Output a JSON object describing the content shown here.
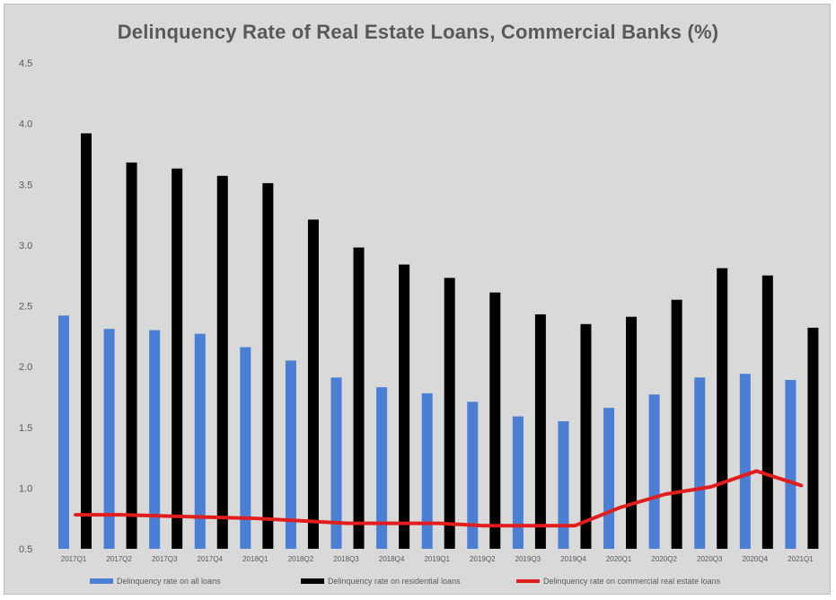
{
  "chart_data": {
    "type": "bar",
    "title": "Delinquency Rate of Real Estate Loans, Commercial Banks (%)",
    "xlabel": "",
    "ylabel": "",
    "ylim": [
      0.5,
      4.5
    ],
    "yticks": [
      "0.5",
      "1.0",
      "1.5",
      "2.0",
      "2.5",
      "3.0",
      "3.5",
      "4.0",
      "4.5"
    ],
    "grid": false,
    "legend_position": "bottom",
    "categories": [
      "2017Q1",
      "2017Q2",
      "2017Q3",
      "2017Q4",
      "2018Q1",
      "2018Q2",
      "2018Q3",
      "2018Q4",
      "2019Q1",
      "2019Q2",
      "2019Q3",
      "2019Q4",
      "2020Q1",
      "2020Q2",
      "2020Q3",
      "2020Q4",
      "2021Q1"
    ],
    "series": [
      {
        "name": "Delinquency rate on all loans",
        "kind": "bar",
        "color": "#4a7fd4",
        "values": [
          2.42,
          2.31,
          2.3,
          2.27,
          2.16,
          2.05,
          1.91,
          1.83,
          1.78,
          1.71,
          1.59,
          1.55,
          1.66,
          1.77,
          1.91,
          1.94,
          1.89
        ]
      },
      {
        "name": "Delinquency rate on residential loans",
        "kind": "bar",
        "color": "#000000",
        "values": [
          3.92,
          3.68,
          3.63,
          3.57,
          3.51,
          3.21,
          2.98,
          2.84,
          2.73,
          2.61,
          2.43,
          2.35,
          2.41,
          2.55,
          2.81,
          2.75,
          2.32
        ]
      },
      {
        "name": "Delinquency rate on commercial real estate loans",
        "kind": "line",
        "color": "#e11d1d",
        "values": [
          0.78,
          0.78,
          0.77,
          0.76,
          0.75,
          0.73,
          0.71,
          0.71,
          0.71,
          0.69,
          0.69,
          0.69,
          0.84,
          0.95,
          1.01,
          1.14,
          1.02
        ]
      }
    ]
  }
}
